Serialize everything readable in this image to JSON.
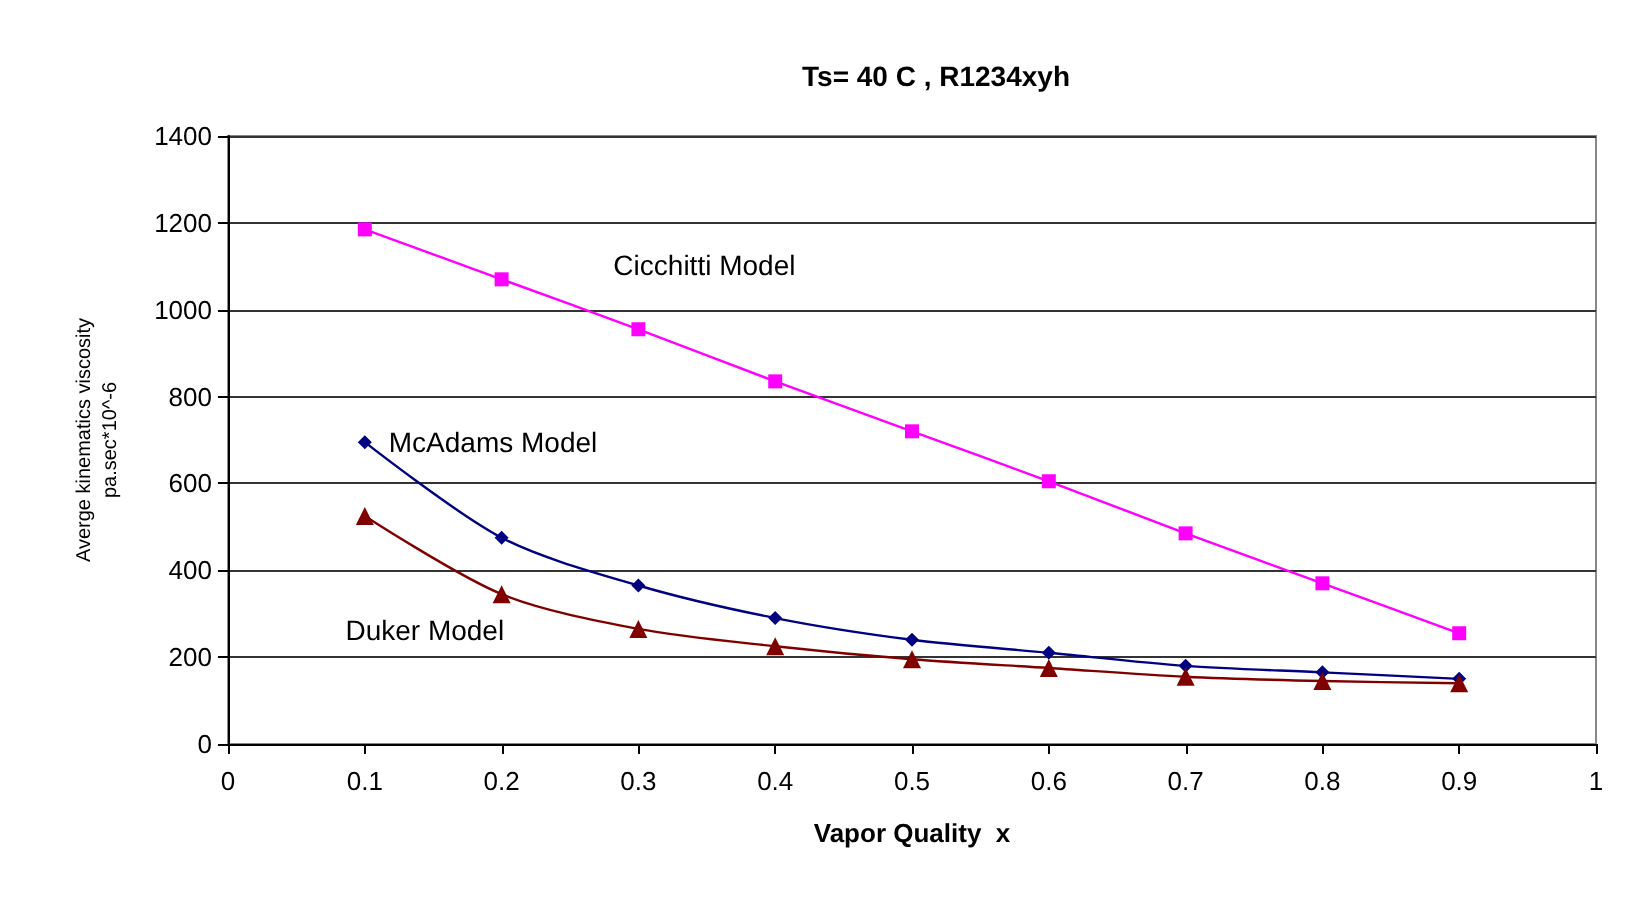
{
  "chart_data": {
    "type": "line",
    "title": "Ts= 40 C , R1234xyh",
    "xlabel": "Vapor Quality  x",
    "ylabel": "Averge kinematics viscosity\npa.sec*10^-6",
    "x": [
      0.1,
      0.2,
      0.3,
      0.4,
      0.5,
      0.6,
      0.7,
      0.8,
      0.9
    ],
    "series": [
      {
        "name": "Cicchitti Model",
        "color": "#ff00ff",
        "marker": "square",
        "values": [
          1185,
          1070,
          955,
          835,
          720,
          605,
          485,
          370,
          255
        ]
      },
      {
        "name": "McAdams Model",
        "color": "#000080",
        "marker": "diamond",
        "values": [
          695,
          475,
          365,
          290,
          240,
          210,
          180,
          165,
          150
        ]
      },
      {
        "name": "Duker Model",
        "color": "#800000",
        "marker": "triangle",
        "values": [
          525,
          345,
          265,
          225,
          195,
          175,
          155,
          145,
          140
        ]
      }
    ],
    "xlim": [
      0,
      1
    ],
    "xticks": [
      0,
      0.1,
      0.2,
      0.3,
      0.4,
      0.5,
      0.6,
      0.7,
      0.8,
      0.9,
      1
    ],
    "ylim": [
      0,
      1400
    ],
    "yticks": [
      0,
      200,
      400,
      600,
      800,
      1000,
      1200,
      1400
    ],
    "grid": "y",
    "legend": false,
    "line_style": "solid"
  }
}
